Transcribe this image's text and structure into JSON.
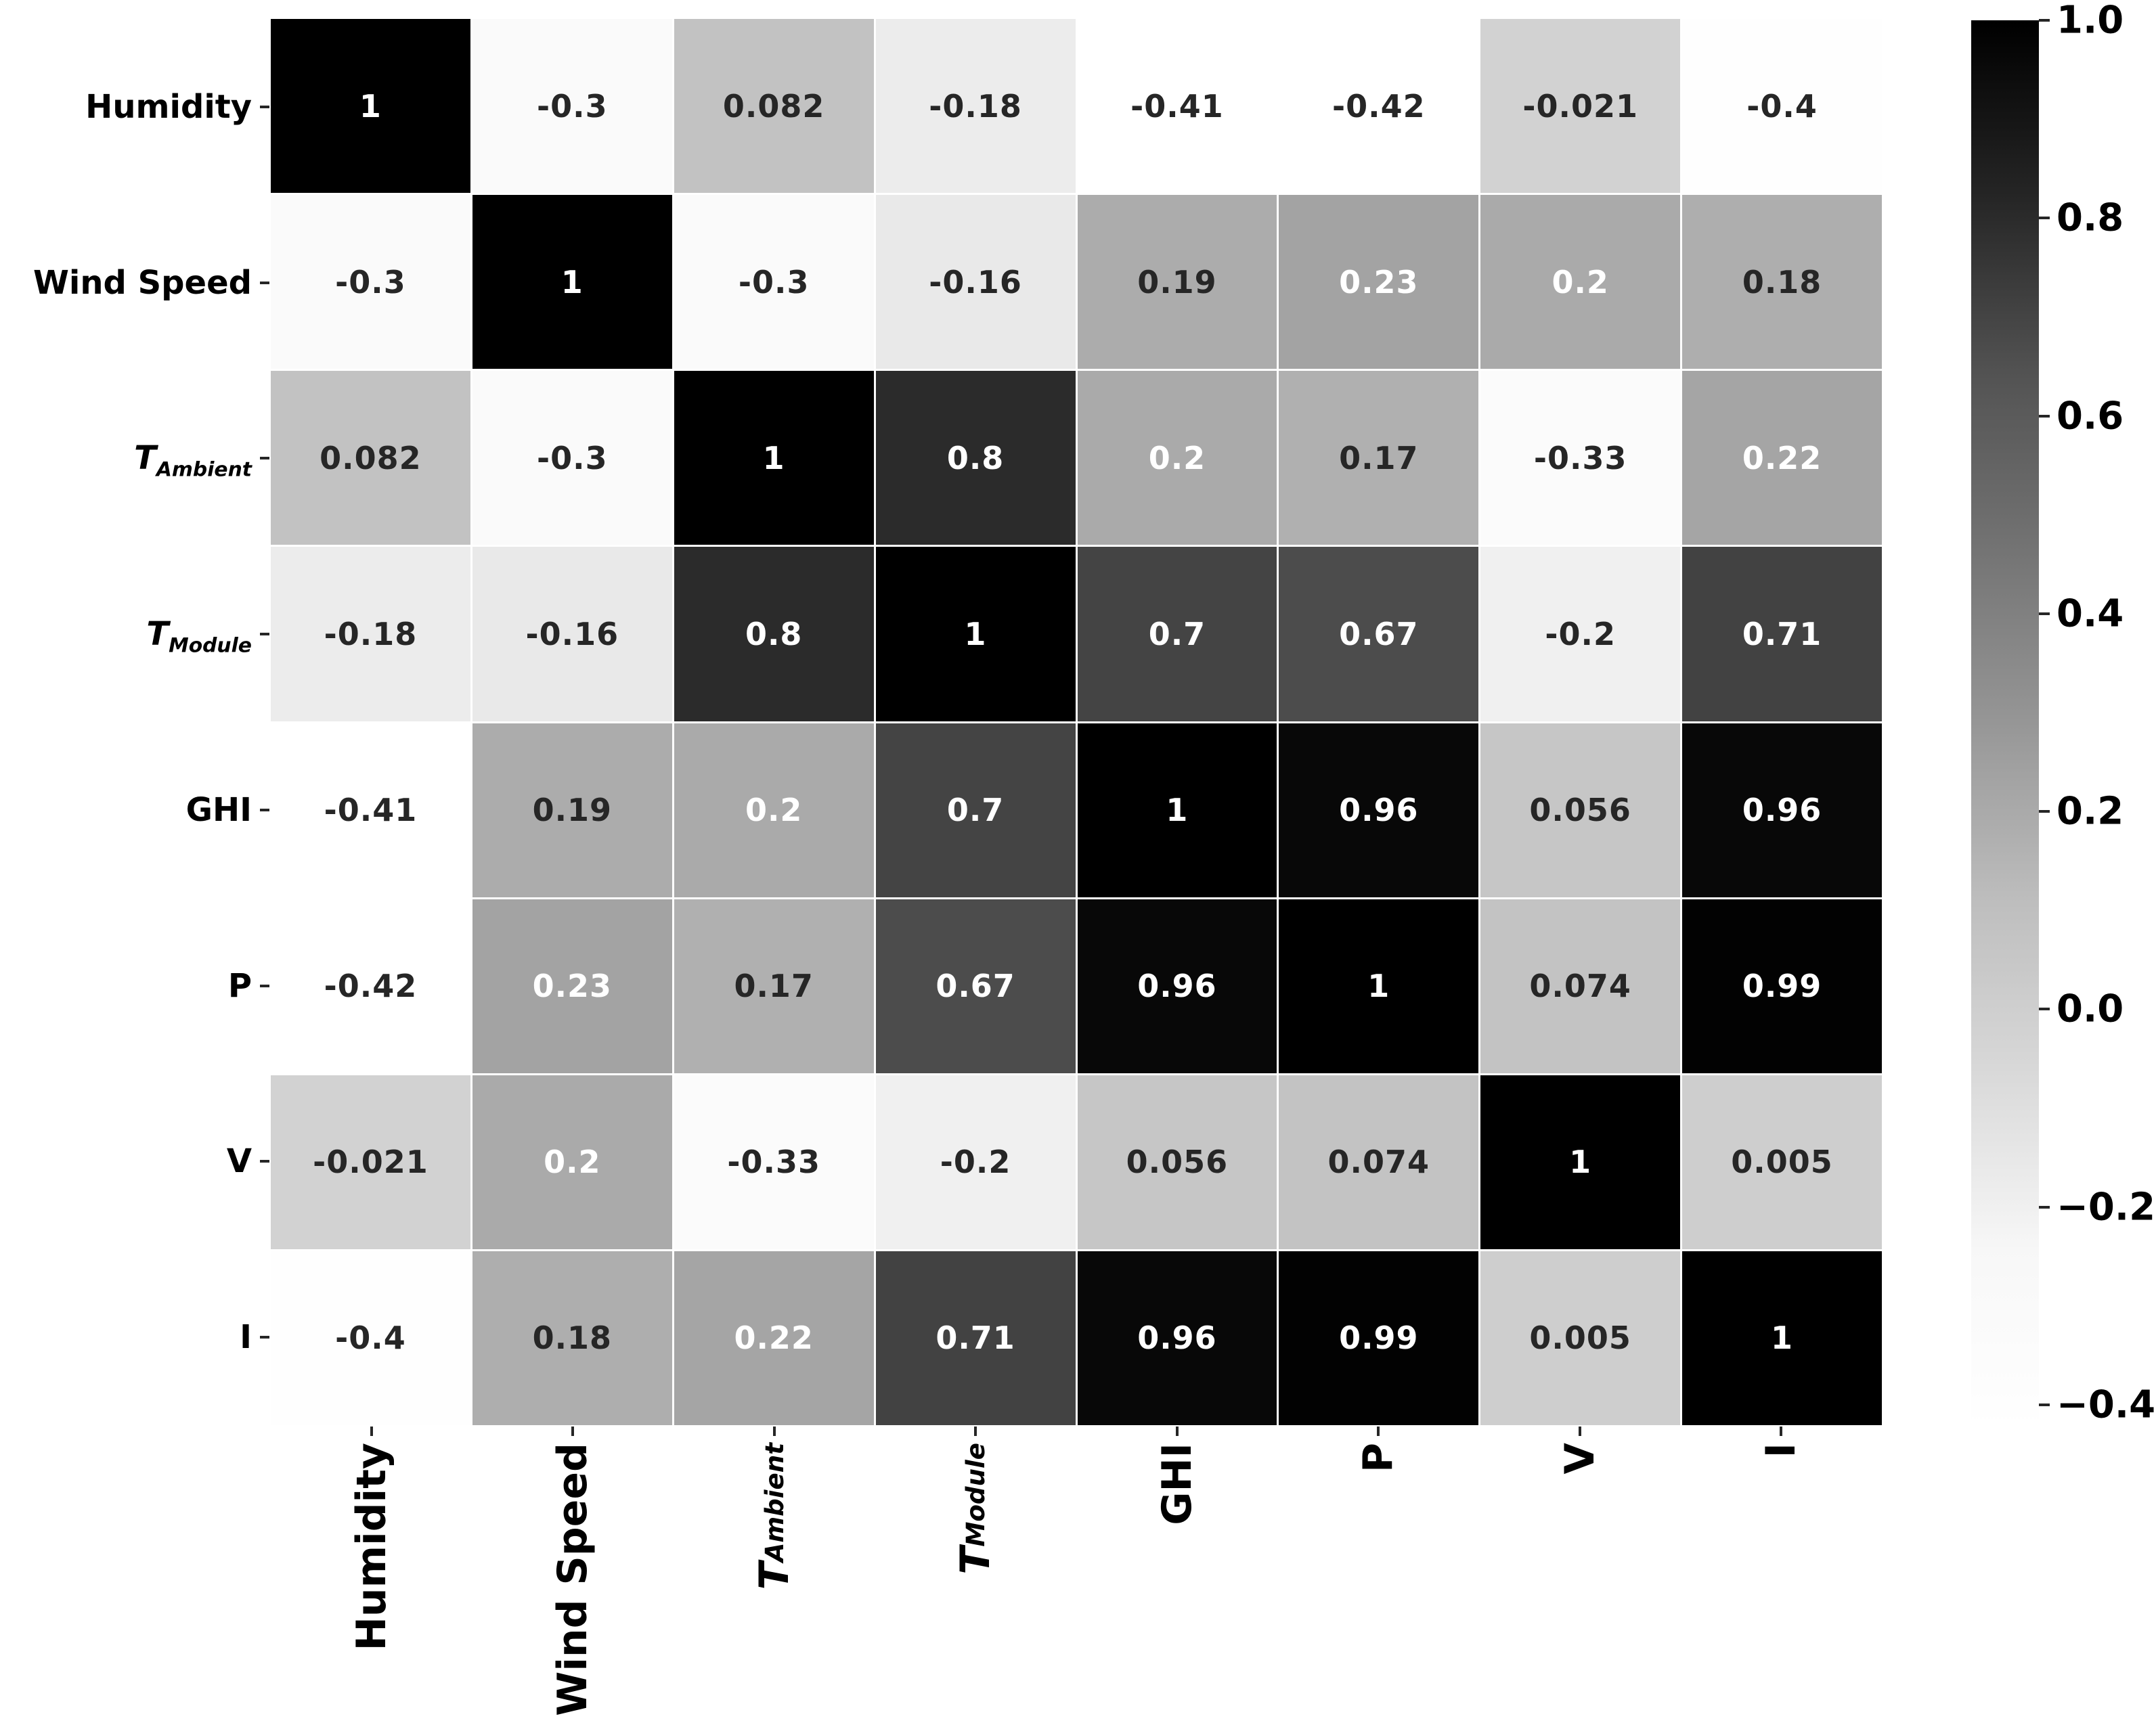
{
  "chart_data": {
    "type": "heatmap",
    "title": "",
    "xlabel": "",
    "ylabel": "",
    "colormap": "Greys",
    "vmin": -0.42,
    "vmax": 1.0,
    "grid": false,
    "legend_position": "right-colorbar",
    "variables": [
      {
        "label": "Humidity",
        "sub": ""
      },
      {
        "label": "Wind Speed",
        "sub": ""
      },
      {
        "label": "T",
        "sub": "Ambient"
      },
      {
        "label": "T",
        "sub": "Module"
      },
      {
        "label": "GHI",
        "sub": ""
      },
      {
        "label": "P",
        "sub": ""
      },
      {
        "label": "V",
        "sub": ""
      },
      {
        "label": "I",
        "sub": ""
      }
    ],
    "matrix": [
      [
        1,
        -0.3,
        0.082,
        -0.18,
        -0.41,
        -0.42,
        -0.021,
        -0.4
      ],
      [
        -0.3,
        1,
        -0.3,
        -0.16,
        0.19,
        0.23,
        0.2,
        0.18
      ],
      [
        0.082,
        -0.3,
        1,
        0.8,
        0.2,
        0.17,
        -0.33,
        0.22
      ],
      [
        -0.18,
        -0.16,
        0.8,
        1,
        0.7,
        0.67,
        -0.2,
        0.71
      ],
      [
        -0.41,
        0.19,
        0.2,
        0.7,
        1,
        0.96,
        0.056,
        0.96
      ],
      [
        -0.42,
        0.23,
        0.17,
        0.67,
        0.96,
        1,
        0.074,
        0.99
      ],
      [
        -0.021,
        0.2,
        -0.33,
        -0.2,
        0.056,
        0.074,
        1,
        0.005
      ],
      [
        -0.4,
        0.18,
        0.22,
        0.71,
        0.96,
        0.99,
        0.005,
        1
      ]
    ],
    "annotations": [
      [
        "1",
        "-0.3",
        "0.082",
        "-0.18",
        "-0.41",
        "-0.42",
        "-0.021",
        "-0.4"
      ],
      [
        "-0.3",
        "1",
        "-0.3",
        "-0.16",
        "0.19",
        "0.23",
        "0.2",
        "0.18"
      ],
      [
        "0.082",
        "-0.3",
        "1",
        "0.8",
        "0.2",
        "0.17",
        "-0.33",
        "0.22"
      ],
      [
        "-0.18",
        "-0.16",
        "0.8",
        "1",
        "0.7",
        "0.67",
        "-0.2",
        "0.71"
      ],
      [
        "-0.41",
        "0.19",
        "0.2",
        "0.7",
        "1",
        "0.96",
        "0.056",
        "0.96"
      ],
      [
        "-0.42",
        "0.23",
        "0.17",
        "0.67",
        "0.96",
        "1",
        "0.074",
        "0.99"
      ],
      [
        "-0.021",
        "0.2",
        "-0.33",
        "-0.2",
        "0.056",
        "0.074",
        "1",
        "0.005"
      ],
      [
        "-0.4",
        "0.18",
        "0.22",
        "0.71",
        "0.96",
        "0.99",
        "0.005",
        "1"
      ]
    ],
    "annotation_colors": {
      "dark_text": "#262626",
      "light_text": "#ffffff",
      "luminance_threshold": 0.408
    },
    "colorbar": {
      "ticks": [
        {
          "value": 1.0,
          "label": "1.0"
        },
        {
          "value": 0.8,
          "label": "0.8"
        },
        {
          "value": 0.6,
          "label": "0.6"
        },
        {
          "value": 0.4,
          "label": "0.4"
        },
        {
          "value": 0.2,
          "label": "0.2"
        },
        {
          "value": 0.0,
          "label": "0.0"
        },
        {
          "value": -0.2,
          "label": "−0.2"
        },
        {
          "value": -0.4,
          "label": "−0.4"
        }
      ]
    }
  }
}
